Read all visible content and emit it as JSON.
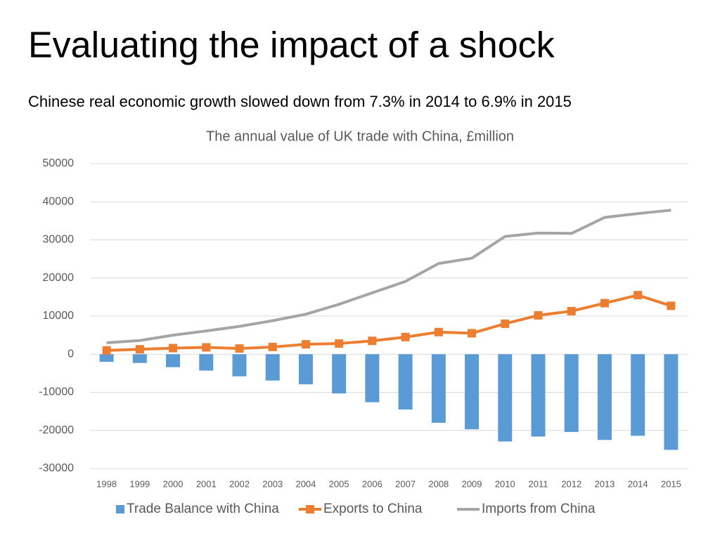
{
  "title": "Evaluating the impact of a shock",
  "subtitle": "Chinese real economic growth slowed down from 7.3% in 2014 to 6.9% in 2015",
  "chart_data": {
    "type": "bar-line",
    "title": "The annual value of UK trade with China, £million",
    "categories": [
      "1998",
      "1999",
      "2000",
      "2001",
      "2002",
      "2003",
      "2004",
      "2005",
      "2006",
      "2007",
      "2008",
      "2009",
      "2010",
      "2011",
      "2012",
      "2013",
      "2014",
      "2015"
    ],
    "series": [
      {
        "name": "Trade Balance with China",
        "type": "bar",
        "color": "#5b9bd5",
        "values": [
          -2000,
          -2300,
          -3400,
          -4300,
          -5800,
          -6900,
          -7900,
          -10300,
          -12600,
          -14500,
          -18000,
          -19700,
          -22900,
          -21600,
          -20400,
          -22500,
          -21400,
          -25100
        ]
      },
      {
        "name": "Exports to China",
        "type": "line",
        "marker": "square",
        "color": "#ed7d31",
        "values": [
          1000,
          1300,
          1600,
          1800,
          1500,
          1900,
          2600,
          2800,
          3500,
          4500,
          5800,
          5500,
          8000,
          10200,
          11300,
          13400,
          15500,
          12700
        ]
      },
      {
        "name": "Imports from China",
        "type": "line",
        "color": "#a5a5a5",
        "values": [
          3000,
          3600,
          5000,
          6100,
          7300,
          8800,
          10500,
          13100,
          16100,
          19100,
          23800,
          25200,
          30900,
          31800,
          31700,
          35900,
          36900,
          37800
        ]
      }
    ],
    "ylim": [
      -30000,
      50000
    ],
    "yticks": [
      -30000,
      -20000,
      -10000,
      0,
      10000,
      20000,
      30000,
      40000,
      50000
    ],
    "grid": true,
    "legend": "bottom"
  }
}
